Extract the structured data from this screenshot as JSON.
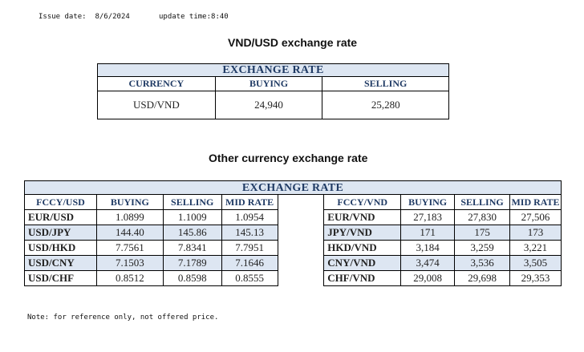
{
  "header": {
    "issue_date": "Issue date:  8/6/2024",
    "update_time": "update time:8:40"
  },
  "vnd_usd": {
    "title": "VND/USD exchange rate",
    "table_title": "EXCHANGE RATE",
    "columns": [
      "CURRENCY",
      "BUYING",
      "SELLING"
    ],
    "row": {
      "currency": "USD/VND",
      "buying": "24,940",
      "selling": "25,280"
    }
  },
  "other": {
    "title": "Other currency exchange rate",
    "table_title": "EXCHANGE  RATE",
    "left_columns": [
      "FCCY/USD",
      "BUYING",
      "SELLING",
      "MID RATE"
    ],
    "right_columns": [
      "FCCY/VND",
      "BUYING",
      "SELLING",
      "MID RATE"
    ],
    "rows": [
      {
        "l_pair": "EUR/USD",
        "l_buy": "1.0899",
        "l_sell": "1.1009",
        "l_mid": "1.0954",
        "r_pair": "EUR/VND",
        "r_buy": "27,183",
        "r_sell": "27,830",
        "r_mid": "27,506"
      },
      {
        "l_pair": "USD/JPY",
        "l_buy": "144.40",
        "l_sell": "145.86",
        "l_mid": "145.13",
        "r_pair": "JPY/VND",
        "r_buy": "171",
        "r_sell": "175",
        "r_mid": "173"
      },
      {
        "l_pair": "USD/HKD",
        "l_buy": "7.7561",
        "l_sell": "7.8341",
        "l_mid": "7.7951",
        "r_pair": "HKD/VND",
        "r_buy": "3,184",
        "r_sell": "3,259",
        "r_mid": "3,221"
      },
      {
        "l_pair": "USD/CNY",
        "l_buy": "7.1503",
        "l_sell": "7.1789",
        "l_mid": "7.1646",
        "r_pair": "CNY/VND",
        "r_buy": "3,474",
        "r_sell": "3,536",
        "r_mid": "3,505"
      },
      {
        "l_pair": "USD/CHF",
        "l_buy": "0.8512",
        "l_sell": "0.8598",
        "l_mid": "0.8555",
        "r_pair": "CHF/VND",
        "r_buy": "29,008",
        "r_sell": "29,698",
        "r_mid": "29,353"
      }
    ]
  },
  "note": "Note: for reference only, not offered price.",
  "colors": {
    "header_fill": "#dde6f2",
    "header_text": "#1f3a64"
  }
}
